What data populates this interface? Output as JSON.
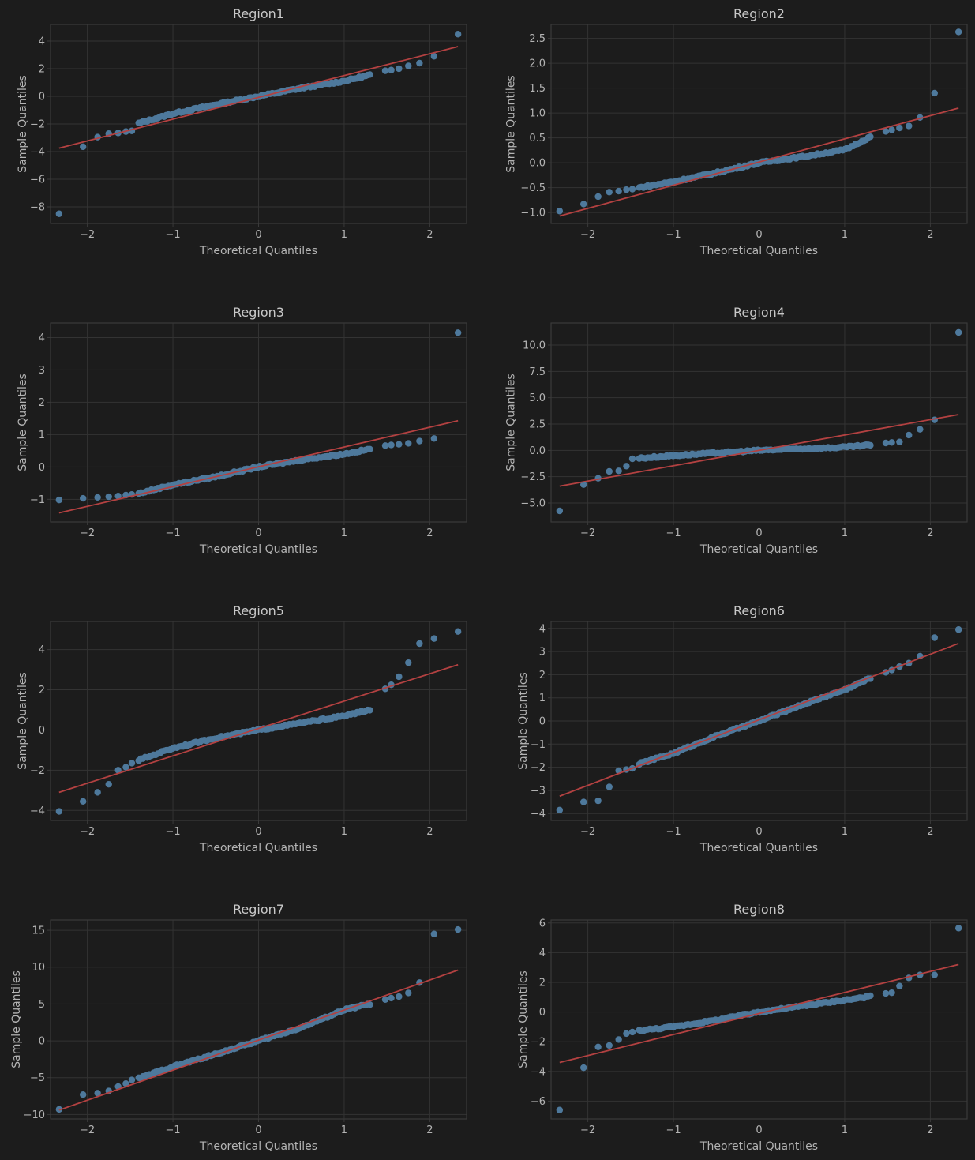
{
  "figure": {
    "background": "#1c1c1c",
    "axes_color": "#3a3a3a",
    "grid_color": "#333333",
    "text_color": "#b4b4b4",
    "title_color": "#c8c8c8",
    "point_color": "#4e799c",
    "line_color": "#b34141"
  },
  "chart_data": [
    {
      "type": "scatter",
      "title": "Region1",
      "xlabel": "Theoretical Quantiles",
      "ylabel": "Sample Quantiles",
      "xlim": [
        -2.43,
        2.43
      ],
      "ylim": [
        -9.2,
        5.2
      ],
      "xticks": [
        -2,
        -1,
        0,
        1,
        2
      ],
      "xtick_labels": [
        "−2",
        "−1",
        "0",
        "1",
        "2"
      ],
      "yticks": [
        -8,
        -6,
        -4,
        -2,
        0,
        2,
        4
      ],
      "ytick_labels": [
        "−8",
        "−6",
        "−4",
        "−2",
        "0",
        "2",
        "4"
      ],
      "grid": true,
      "reference_line": {
        "x": [
          -2.33,
          2.33
        ],
        "y": [
          -3.75,
          3.6
        ]
      },
      "tail_points": {
        "x": [
          -2.33,
          -2.05,
          -1.88,
          -1.75,
          -1.64,
          -1.55,
          -1.48,
          1.48,
          1.55,
          1.64,
          1.75,
          1.88,
          2.05,
          2.33
        ],
        "y": [
          -8.5,
          -3.65,
          -2.95,
          -2.7,
          -2.65,
          -2.55,
          -2.5,
          1.85,
          1.9,
          2.0,
          2.2,
          2.4,
          2.9,
          4.5
        ]
      },
      "body_curve": {
        "x": [
          -1.4,
          -1.0,
          -0.5,
          0.0,
          0.5,
          1.0,
          1.3
        ],
        "y": [
          -1.95,
          -1.25,
          -0.6,
          0.0,
          0.6,
          1.1,
          1.55
        ]
      }
    },
    {
      "type": "scatter",
      "title": "Region2",
      "xlabel": "Theoretical Quantiles",
      "ylabel": "Sample Quantiles",
      "xlim": [
        -2.43,
        2.43
      ],
      "ylim": [
        -1.22,
        2.78
      ],
      "xticks": [
        -2,
        -1,
        0,
        1,
        2
      ],
      "xtick_labels": [
        "−2",
        "−1",
        "0",
        "1",
        "2"
      ],
      "yticks": [
        -1.0,
        -0.5,
        0.0,
        0.5,
        1.0,
        1.5,
        2.0,
        2.5
      ],
      "ytick_labels": [
        "−1.0",
        "−0.5",
        "0.0",
        "0.5",
        "1.0",
        "1.5",
        "2.0",
        "2.5"
      ],
      "grid": true,
      "reference_line": {
        "x": [
          -2.33,
          2.33
        ],
        "y": [
          -1.07,
          1.1
        ]
      },
      "tail_points": {
        "x": [
          -2.33,
          -2.05,
          -1.88,
          -1.75,
          -1.64,
          -1.55,
          -1.48,
          1.48,
          1.55,
          1.64,
          1.75,
          1.88,
          2.05,
          2.33
        ],
        "y": [
          -0.97,
          -0.83,
          -0.68,
          -0.59,
          -0.57,
          -0.54,
          -0.53,
          0.63,
          0.66,
          0.7,
          0.74,
          0.91,
          1.4,
          2.63
        ]
      },
      "body_curve": {
        "x": [
          -1.4,
          -1.0,
          -0.5,
          0.0,
          0.5,
          1.0,
          1.3
        ],
        "y": [
          -0.5,
          -0.38,
          -0.2,
          0.0,
          0.12,
          0.26,
          0.52
        ]
      }
    },
    {
      "type": "scatter",
      "title": "Region3",
      "xlabel": "Theoretical Quantiles",
      "ylabel": "Sample Quantiles",
      "xlim": [
        -2.43,
        2.43
      ],
      "ylim": [
        -1.7,
        4.45
      ],
      "xticks": [
        -2,
        -1,
        0,
        1,
        2
      ],
      "xtick_labels": [
        "−2",
        "−1",
        "0",
        "1",
        "2"
      ],
      "yticks": [
        -1,
        0,
        1,
        2,
        3,
        4
      ],
      "ytick_labels": [
        "−1",
        "0",
        "1",
        "2",
        "3",
        "4"
      ],
      "grid": true,
      "reference_line": {
        "x": [
          -2.33,
          2.33
        ],
        "y": [
          -1.42,
          1.43
        ]
      },
      "tail_points": {
        "x": [
          -2.33,
          -2.05,
          -1.88,
          -1.75,
          -1.64,
          -1.55,
          -1.48,
          1.48,
          1.55,
          1.64,
          1.75,
          1.88,
          2.05,
          2.33
        ],
        "y": [
          -1.02,
          -0.97,
          -0.94,
          -0.92,
          -0.9,
          -0.87,
          -0.85,
          0.66,
          0.68,
          0.7,
          0.73,
          0.8,
          0.88,
          4.15
        ]
      },
      "body_curve": {
        "x": [
          -1.4,
          -1.0,
          -0.5,
          0.0,
          0.5,
          1.0,
          1.3
        ],
        "y": [
          -0.82,
          -0.55,
          -0.3,
          0.0,
          0.22,
          0.4,
          0.55
        ]
      }
    },
    {
      "type": "scatter",
      "title": "Region4",
      "xlabel": "Theoretical Quantiles",
      "ylabel": "Sample Quantiles",
      "xlim": [
        -2.43,
        2.43
      ],
      "ylim": [
        -6.8,
        12.1
      ],
      "xticks": [
        -2,
        -1,
        0,
        1,
        2
      ],
      "xtick_labels": [
        "−2",
        "−1",
        "0",
        "1",
        "2"
      ],
      "yticks": [
        -5.0,
        -2.5,
        0.0,
        2.5,
        5.0,
        7.5,
        10.0
      ],
      "ytick_labels": [
        "−5.0",
        "−2.5",
        "0.0",
        "2.5",
        "5.0",
        "7.5",
        "10.0"
      ],
      "grid": true,
      "reference_line": {
        "x": [
          -2.33,
          2.33
        ],
        "y": [
          -3.4,
          3.4
        ]
      },
      "tail_points": {
        "x": [
          -2.33,
          -2.05,
          -1.88,
          -1.75,
          -1.64,
          -1.55,
          -1.48,
          1.48,
          1.55,
          1.64,
          1.75,
          1.88,
          2.05,
          2.33
        ],
        "y": [
          -5.75,
          -3.25,
          -2.65,
          -2.0,
          -1.95,
          -1.5,
          -0.8,
          0.7,
          0.75,
          0.8,
          1.45,
          2.0,
          2.9,
          11.2
        ]
      },
      "body_curve": {
        "x": [
          -1.4,
          -1.0,
          -0.5,
          0.0,
          0.5,
          1.0,
          1.3
        ],
        "y": [
          -0.75,
          -0.5,
          -0.25,
          0.0,
          0.15,
          0.3,
          0.5
        ]
      }
    },
    {
      "type": "scatter",
      "title": "Region5",
      "xlabel": "Theoretical Quantiles",
      "ylabel": "Sample Quantiles",
      "xlim": [
        -2.43,
        2.43
      ],
      "ylim": [
        -4.5,
        5.4
      ],
      "xticks": [
        -2,
        -1,
        0,
        1,
        2
      ],
      "xtick_labels": [
        "−2",
        "−1",
        "0",
        "1",
        "2"
      ],
      "yticks": [
        -4,
        -2,
        0,
        2,
        4
      ],
      "ytick_labels": [
        "−4",
        "−2",
        "0",
        "2",
        "4"
      ],
      "grid": true,
      "reference_line": {
        "x": [
          -2.33,
          2.33
        ],
        "y": [
          -3.1,
          3.25
        ]
      },
      "tail_points": {
        "x": [
          -2.33,
          -2.05,
          -1.88,
          -1.75,
          -1.64,
          -1.55,
          -1.48,
          1.48,
          1.55,
          1.64,
          1.75,
          1.88,
          2.05,
          2.33
        ],
        "y": [
          -4.05,
          -3.55,
          -3.1,
          -2.7,
          -2.0,
          -1.85,
          -1.65,
          2.05,
          2.25,
          2.65,
          3.35,
          4.3,
          4.55,
          4.9
        ]
      },
      "body_curve": {
        "x": [
          -1.4,
          -1.0,
          -0.5,
          0.0,
          0.5,
          1.0,
          1.3
        ],
        "y": [
          -1.5,
          -0.9,
          -0.4,
          0.0,
          0.35,
          0.7,
          1.0
        ]
      }
    },
    {
      "type": "scatter",
      "title": "Region6",
      "xlabel": "Theoretical Quantiles",
      "ylabel": "Sample Quantiles",
      "xlim": [
        -2.43,
        2.43
      ],
      "ylim": [
        -4.3,
        4.3
      ],
      "xticks": [
        -2,
        -1,
        0,
        1,
        2
      ],
      "xtick_labels": [
        "−2",
        "−1",
        "0",
        "1",
        "2"
      ],
      "yticks": [
        -4,
        -3,
        -2,
        -1,
        0,
        1,
        2,
        3,
        4
      ],
      "ytick_labels": [
        "−4",
        "−3",
        "−2",
        "−1",
        "0",
        "1",
        "2",
        "3",
        "4"
      ],
      "grid": true,
      "reference_line": {
        "x": [
          -2.33,
          2.33
        ],
        "y": [
          -3.25,
          3.35
        ]
      },
      "tail_points": {
        "x": [
          -2.33,
          -2.05,
          -1.88,
          -1.75,
          -1.64,
          -1.55,
          -1.48,
          1.48,
          1.55,
          1.64,
          1.75,
          1.88,
          2.05,
          2.33
        ],
        "y": [
          -3.85,
          -3.5,
          -3.45,
          -2.85,
          -2.15,
          -2.1,
          -2.05,
          2.1,
          2.2,
          2.35,
          2.5,
          2.8,
          3.6,
          3.95
        ]
      },
      "body_curve": {
        "x": [
          -1.4,
          -1.0,
          -0.5,
          0.0,
          0.5,
          1.0,
          1.3
        ],
        "y": [
          -1.85,
          -1.4,
          -0.65,
          0.0,
          0.7,
          1.35,
          1.85
        ]
      }
    },
    {
      "type": "scatter",
      "title": "Region7",
      "xlabel": "Theoretical Quantiles",
      "ylabel": "Sample Quantiles",
      "xlim": [
        -2.43,
        2.43
      ],
      "ylim": [
        -10.6,
        16.4
      ],
      "xticks": [
        -2,
        -1,
        0,
        1,
        2
      ],
      "xtick_labels": [
        "−2",
        "−1",
        "0",
        "1",
        "2"
      ],
      "yticks": [
        -10,
        -5,
        0,
        5,
        10,
        15
      ],
      "ytick_labels": [
        "−10",
        "−5",
        "0",
        "5",
        "10",
        "15"
      ],
      "grid": true,
      "reference_line": {
        "x": [
          -2.33,
          2.33
        ],
        "y": [
          -9.4,
          9.6
        ]
      },
      "tail_points": {
        "x": [
          -2.33,
          -2.05,
          -1.88,
          -1.75,
          -1.64,
          -1.55,
          -1.48,
          1.48,
          1.55,
          1.64,
          1.75,
          1.88,
          2.05,
          2.33
        ],
        "y": [
          -9.3,
          -7.3,
          -7.1,
          -6.8,
          -6.2,
          -5.8,
          -5.3,
          5.6,
          5.8,
          6.0,
          6.5,
          7.9,
          14.5,
          15.1
        ]
      },
      "body_curve": {
        "x": [
          -1.4,
          -1.0,
          -0.5,
          0.0,
          0.5,
          1.0,
          1.3
        ],
        "y": [
          -5.1,
          -3.5,
          -1.8,
          0.0,
          1.8,
          4.2,
          5.0
        ]
      }
    },
    {
      "type": "scatter",
      "title": "Region8",
      "xlabel": "Theoretical Quantiles",
      "ylabel": "Sample Quantiles",
      "xlim": [
        -2.43,
        2.43
      ],
      "ylim": [
        -7.2,
        6.2
      ],
      "xticks": [
        -2,
        -1,
        0,
        1,
        2
      ],
      "xtick_labels": [
        "−2",
        "−1",
        "0",
        "1",
        "2"
      ],
      "yticks": [
        -6,
        -4,
        -2,
        0,
        2,
        4,
        6
      ],
      "ytick_labels": [
        "−6",
        "−4",
        "−2",
        "0",
        "2",
        "4",
        "6"
      ],
      "grid": true,
      "reference_line": {
        "x": [
          -2.33,
          2.33
        ],
        "y": [
          -3.4,
          3.2
        ]
      },
      "tail_points": {
        "x": [
          -2.33,
          -2.05,
          -1.88,
          -1.75,
          -1.64,
          -1.55,
          -1.48,
          1.48,
          1.55,
          1.64,
          1.75,
          1.88,
          2.05,
          2.33
        ],
        "y": [
          -6.6,
          -3.75,
          -2.35,
          -2.25,
          -1.85,
          -1.45,
          -1.35,
          1.25,
          1.3,
          1.75,
          2.3,
          2.5,
          2.5,
          5.65
        ]
      },
      "body_curve": {
        "x": [
          -1.4,
          -1.0,
          -0.5,
          0.0,
          0.5,
          1.0,
          1.3
        ],
        "y": [
          -1.25,
          -1.0,
          -0.55,
          0.0,
          0.4,
          0.8,
          1.05
        ]
      }
    }
  ]
}
